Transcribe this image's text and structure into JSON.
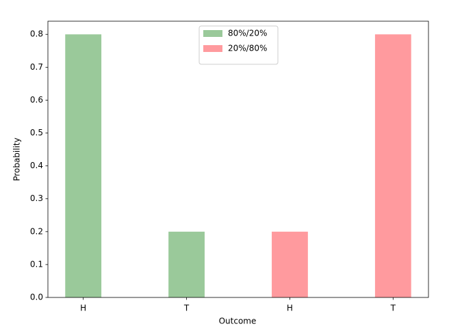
{
  "chart_data": {
    "type": "bar",
    "x_label": "Outcome",
    "y_label": "Probability",
    "categories": [
      "H",
      "T",
      "H",
      "T"
    ],
    "series": [
      {
        "name": "80%/20%",
        "color": "#9ac99a",
        "values": [
          0.8,
          0.2,
          null,
          null
        ]
      },
      {
        "name": "20%/80%",
        "color": "#ff9a9e",
        "values": [
          null,
          null,
          0.2,
          0.8
        ]
      }
    ],
    "ylim": [
      0,
      0.84
    ],
    "yticks": [
      0.0,
      0.1,
      0.2,
      0.3,
      0.4,
      0.5,
      0.6,
      0.7,
      0.8
    ],
    "legend": "upper center"
  }
}
